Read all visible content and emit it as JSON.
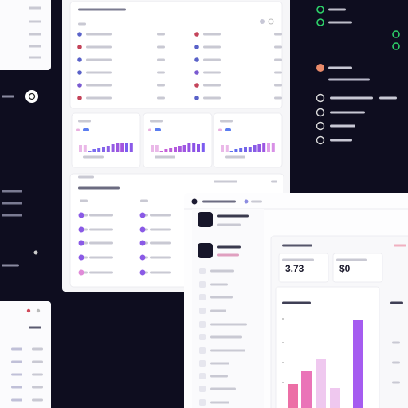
{
  "stats": [
    "3.73",
    "$0"
  ],
  "mini_charts": [
    {
      "ylim": [
        0,
        20
      ],
      "values": [
        9,
        9,
        2,
        4,
        5,
        7,
        8,
        10,
        11,
        12,
        11,
        11
      ],
      "colors": [
        "#eab8e8",
        "#eab8e8",
        "#7b6cf0",
        "#7b6cf0",
        "#7d68ee",
        "#8464ea",
        "#8c5fe6",
        "#945be4",
        "#9c57e0",
        "#a454de",
        "#7a5ff0",
        "#8a5ae8"
      ]
    },
    {
      "ylim": [
        0,
        20
      ],
      "values": [
        9,
        9,
        2,
        4,
        5,
        6,
        8,
        9,
        11,
        12,
        10,
        11
      ],
      "colors": [
        "#eab8e8",
        "#eab8e8",
        "#c65fd8",
        "#c65fd8",
        "#bc5cda",
        "#b45ade",
        "#aa58e0",
        "#a056e2",
        "#9654e4",
        "#8c52e6",
        "#8c52e6",
        "#7c5cf0"
      ]
    },
    {
      "ylim": [
        0,
        20
      ],
      "values": [
        9,
        9,
        2,
        4,
        5,
        6,
        7,
        9,
        10,
        12,
        11,
        11
      ],
      "colors": [
        "#eab8e8",
        "#eab8e8",
        "#5c6ef0",
        "#606cee",
        "#6a68ec",
        "#7464ea",
        "#7e60e8",
        "#885ce6",
        "#9258e4",
        "#9c56e2",
        "#e0a0e8",
        "#d890e6"
      ]
    }
  ],
  "bar_chart": {
    "ylim": [
      0,
      120
    ],
    "values": [
      30,
      47,
      62,
      25,
      110
    ],
    "colors": [
      "#ec6fa6",
      "#ea74b8",
      "#efc8ef",
      "#efc8ef",
      "#a55cf0"
    ]
  }
}
